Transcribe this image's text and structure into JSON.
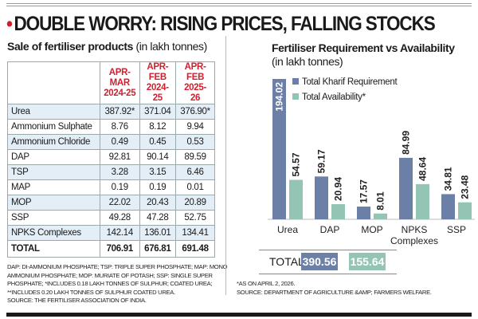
{
  "headline": "DOUBLE WORRY: RISING PRICES, FALLING STOCKS",
  "table": {
    "title": "Sale of fertiliser products",
    "unit": "(in lakh tonnes)",
    "columns": [
      [
        "APR-MAR",
        "2024-25"
      ],
      [
        "APR-FEB",
        "2024-25"
      ],
      [
        "APR-FEB",
        "2025-26"
      ]
    ],
    "rows": [
      [
        "Urea",
        "387.92*",
        "371.04",
        "376.90*"
      ],
      [
        "Ammonium Sulphate",
        "8.76",
        "8.12",
        "9.94"
      ],
      [
        "Ammonium Chloride",
        "0.49",
        "0.45",
        "0.53"
      ],
      [
        "DAP",
        "92.81",
        "90.14",
        "89.59"
      ],
      [
        "TSP",
        "3.28",
        "3.15",
        "6.46"
      ],
      [
        "MAP",
        "0.19",
        "0.19",
        "0.01"
      ],
      [
        "MOP",
        "22.02",
        "20.43",
        "20.89"
      ],
      [
        "SSP",
        "49.28",
        "47.28",
        "52.75"
      ],
      [
        "NPKS Complexes",
        "142.14",
        "136.01",
        "134.41"
      ],
      [
        "TOTAL",
        "706.91",
        "676.81",
        "691.48"
      ]
    ],
    "footnotes": [
      "DAP: DI-AMMONIUM PHOSPHATE; TSP: TRIPLE SUPER PHOSPHATE; MAP: MONO",
      "AMMONIUM PHOSPHATE; MOP: MURIATE OF POTASH; SSP: SINGLE SUPER",
      "PHOSPHATE; *INCLUDES 0.18 LAKH TONNES OF SULPHUR; COATED UREA;",
      "**INCLUDES 0.20 LAKH TONNES OF SULPHUR COATED UREA.",
      "SOURCE: THE FERTILISER ASSOCIATION OF INDIA."
    ]
  },
  "chart_data": {
    "type": "bar",
    "title": "Fertiliser Requirement vs Availability",
    "subtitle": "(in lakh tonnes)",
    "categories": [
      "Urea",
      "DAP",
      "MOP",
      "NPKS Complexes",
      "SSP"
    ],
    "series": [
      {
        "name": "Total Kharif Requirement",
        "color": "#6c7fa6",
        "values": [
          194.02,
          59.17,
          17.57,
          84.99,
          34.81
        ]
      },
      {
        "name": "Total Availability*",
        "color": "#93c4b4",
        "values": [
          54.57,
          20.94,
          8.01,
          48.64,
          23.48
        ]
      }
    ],
    "legend": "top-left",
    "grid": false,
    "total_label": "TOTAL",
    "totals": [
      "390.56",
      "155.64"
    ],
    "footnotes": [
      "*AS ON APRIL 2, 2026.",
      "SOURCE: DEPARTMENT OF AGRICULTURE &AMP; FARMERS WELFARE."
    ]
  }
}
